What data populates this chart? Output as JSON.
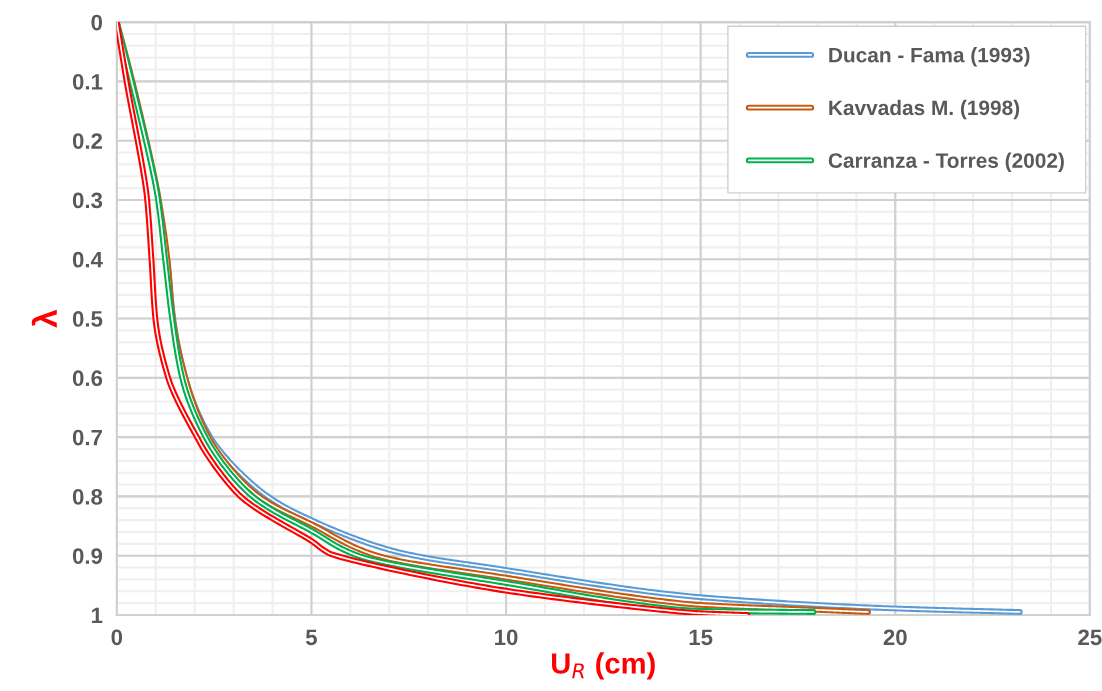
{
  "chart_data": {
    "type": "line",
    "xlabel": "U$_{R}$ (cm)",
    "ylabel": "λ",
    "xlim": [
      0,
      25
    ],
    "xticks": [
      0,
      5,
      10,
      15,
      20,
      25
    ],
    "ylim": [
      1,
      0
    ],
    "yticks": [
      0,
      0.1,
      0.2,
      0.3,
      0.4,
      0.5,
      0.6,
      0.7,
      0.8,
      0.9,
      1
    ],
    "grid": true,
    "legend": "top right",
    "marker": "none",
    "line_style": "solid",
    "series": [
      {
        "name": "Ducan - Fama (1993)",
        "color": "#5b9bd5",
        "x": [
          1.3,
          1.45,
          1.76,
          2.4,
          3.88,
          5,
          7.3,
          10,
          15,
          20,
          23.2
        ],
        "values": [
          0.4,
          0.5,
          0.6,
          0.7,
          0.8,
          0.84,
          0.895,
          0.924,
          0.97,
          0.989,
          0.995
        ]
      },
      {
        "name": "Kavvadas M. (1998)",
        "color": "#c55a11",
        "x": [
          0,
          0.4,
          1.08,
          1.3,
          1.44,
          1.76,
          2.35,
          3.65,
          5,
          6.7,
          10,
          15,
          17.5,
          19.3
        ],
        "values": [
          0,
          0.1,
          0.3,
          0.4,
          0.5,
          0.6,
          0.7,
          0.8,
          0.847,
          0.9,
          0.937,
          0.983,
          0.99,
          0.995
        ]
      },
      {
        "name": "Carranza - Torres (2002)",
        "color": "#00b050",
        "x": [
          0,
          0.38,
          1.06,
          1.24,
          1.42,
          1.68,
          2.28,
          3.49,
          5,
          6.2,
          10,
          15,
          17.9
        ],
        "values": [
          0,
          0.1,
          0.3,
          0.4,
          0.5,
          0.6,
          0.7,
          0.8,
          0.858,
          0.9,
          0.946,
          0.993,
          0.995
        ]
      },
      {
        "color": "#ff0000",
        "x": [
          0,
          0.25,
          0.78,
          0.89,
          0.99,
          1.32,
          2.06,
          2.23,
          3.18,
          5,
          5.43,
          10,
          15,
          16.2
        ],
        "values": [
          0,
          0.1,
          0.3,
          0.4,
          0.5,
          0.6,
          0.7,
          0.72,
          0.8,
          0.875,
          0.895,
          0.959,
          0.997,
          1.0
        ]
      }
    ]
  }
}
